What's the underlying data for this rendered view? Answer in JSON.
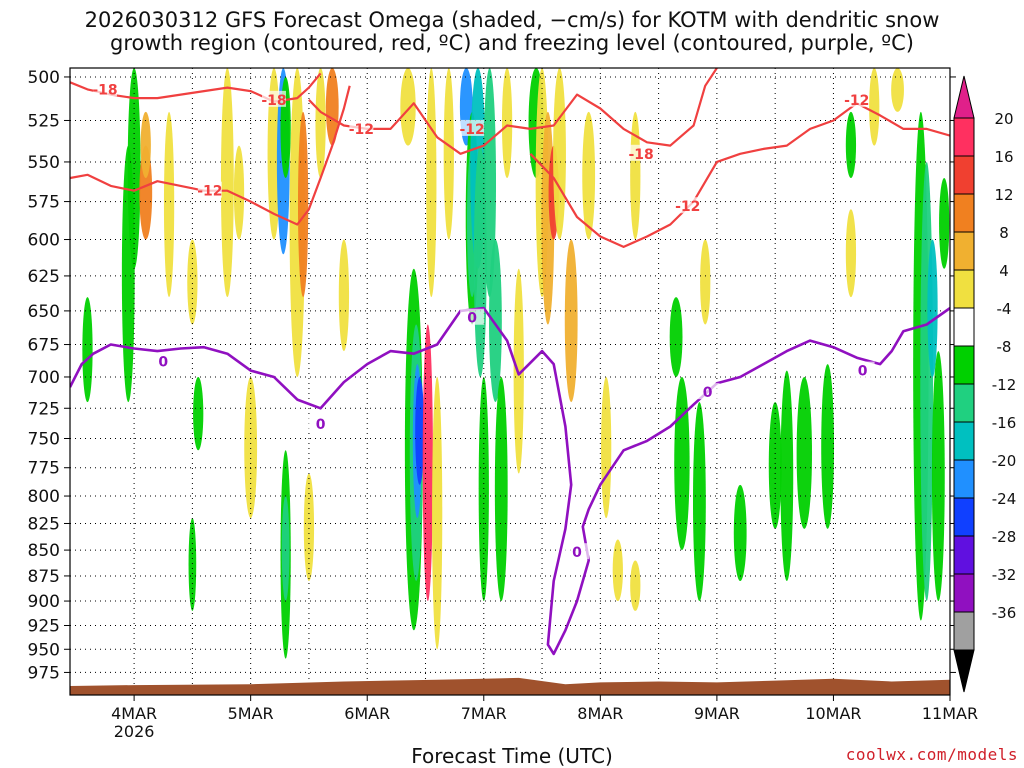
{
  "title_line1": "2026030312 GFS Forecast Omega (shaded, −cm/s) for KOTM with dendritic snow",
  "title_line2": "growth region (contoured, red, ºC) and freezing level (contoured, purple, ºC)",
  "credit": "coolwx.com/models",
  "chart_data": {
    "type": "heatmap",
    "title": "2026030312 GFS Forecast Omega (shaded, −cm/s) for KOTM with dendritic snow growth region (contoured, red, ºC) and freezing level (contoured, purple, ºC)",
    "xlabel": "Forecast Time (UTC)",
    "ylabel": "",
    "x_ticks": [
      "4MAR",
      "5MAR",
      "6MAR",
      "7MAR",
      "8MAR",
      "9MAR",
      "10MAR",
      "11MAR"
    ],
    "x_tick_sub": "2026",
    "x_range_days": [
      3.45,
      11.0
    ],
    "y_ticks": [
      500,
      525,
      550,
      575,
      600,
      625,
      650,
      675,
      700,
      725,
      750,
      775,
      800,
      825,
      850,
      875,
      900,
      925,
      950,
      975
    ],
    "y_range_hpa": [
      495,
      1000
    ],
    "y_scale": "log",
    "grid": true,
    "colorbar": {
      "labels": [
        "20",
        "16",
        "12",
        "8",
        "4",
        "-4",
        "-8",
        "-12",
        "-16",
        "-20",
        "-24",
        "-28",
        "-32",
        "-36"
      ],
      "colors": [
        "#ff3060",
        "#f04030",
        "#f08020",
        "#f0b030",
        "#f0e040",
        "#ffffff",
        "#00d000",
        "#20d080",
        "#00c0c0",
        "#2090ff",
        "#1040ff",
        "#6010e0",
        "#9010c0",
        "#a0a0a0"
      ],
      "end_top": "#e0208a",
      "end_bottom": "#000000"
    },
    "contours": [
      {
        "name": "-18",
        "color": "#f04040",
        "points": [
          [
            3.45,
            503
          ],
          [
            3.6,
            507
          ],
          [
            3.8,
            510
          ],
          [
            4.0,
            512
          ],
          [
            4.2,
            512
          ],
          [
            4.4,
            510
          ],
          [
            4.6,
            508
          ],
          [
            4.8,
            506
          ],
          [
            5.0,
            508
          ],
          [
            5.2,
            514
          ],
          [
            5.4,
            512
          ],
          [
            5.5,
            506
          ],
          [
            5.6,
            498
          ]
        ]
      },
      {
        "name": "-12 upper",
        "color": "#f04040",
        "points": [
          [
            5.5,
            513
          ],
          [
            5.6,
            520
          ],
          [
            5.8,
            528
          ],
          [
            6.0,
            530
          ],
          [
            6.2,
            530
          ],
          [
            6.4,
            515
          ],
          [
            6.6,
            535
          ],
          [
            6.8,
            545
          ],
          [
            7.0,
            540
          ],
          [
            7.2,
            528
          ],
          [
            7.4,
            530
          ],
          [
            7.6,
            528
          ],
          [
            7.8,
            510
          ],
          [
            8.0,
            518
          ],
          [
            8.2,
            530
          ],
          [
            8.4,
            538
          ],
          [
            8.6,
            540
          ],
          [
            8.8,
            528
          ],
          [
            8.9,
            505
          ],
          [
            9.0,
            495
          ]
        ]
      },
      {
        "name": "-12 lower",
        "color": "#f04040",
        "points": [
          [
            3.45,
            560
          ],
          [
            3.6,
            558
          ],
          [
            3.8,
            565
          ],
          [
            4.0,
            568
          ],
          [
            4.2,
            562
          ],
          [
            4.4,
            565
          ],
          [
            4.6,
            568
          ],
          [
            4.8,
            568
          ],
          [
            5.0,
            575
          ],
          [
            5.2,
            583
          ],
          [
            5.4,
            590
          ],
          [
            5.5,
            580
          ],
          [
            5.6,
            560
          ],
          [
            5.7,
            540
          ],
          [
            5.8,
            518
          ],
          [
            5.85,
            505
          ]
        ]
      },
      {
        "name": "-12 right",
        "color": "#f04040",
        "points": [
          [
            7.4,
            545
          ],
          [
            7.6,
            560
          ],
          [
            7.8,
            585
          ],
          [
            8.0,
            598
          ],
          [
            8.2,
            605
          ],
          [
            8.4,
            598
          ],
          [
            8.6,
            590
          ],
          [
            8.8,
            575
          ],
          [
            9.0,
            550
          ],
          [
            9.2,
            545
          ],
          [
            9.4,
            542
          ],
          [
            9.6,
            540
          ],
          [
            9.8,
            530
          ],
          [
            10.0,
            525
          ],
          [
            10.2,
            515
          ],
          [
            10.4,
            522
          ],
          [
            10.6,
            530
          ],
          [
            10.8,
            530
          ],
          [
            11.0,
            534
          ]
        ]
      },
      {
        "name": "0",
        "color": "#9010c0",
        "points": [
          [
            3.45,
            708
          ],
          [
            3.55,
            690
          ],
          [
            3.65,
            682
          ],
          [
            3.8,
            675
          ],
          [
            4.0,
            678
          ],
          [
            4.2,
            680
          ],
          [
            4.4,
            678
          ],
          [
            4.6,
            677
          ],
          [
            4.8,
            682
          ],
          [
            5.0,
            695
          ],
          [
            5.2,
            700
          ],
          [
            5.4,
            718
          ],
          [
            5.6,
            725
          ],
          [
            5.8,
            704
          ],
          [
            6.0,
            690
          ],
          [
            6.2,
            680
          ],
          [
            6.4,
            682
          ],
          [
            6.6,
            675
          ],
          [
            6.8,
            650
          ],
          [
            7.0,
            648
          ],
          [
            7.2,
            672
          ],
          [
            7.3,
            698
          ],
          [
            7.5,
            680
          ],
          [
            7.6,
            690
          ],
          [
            7.7,
            740
          ],
          [
            7.75,
            790
          ],
          [
            7.7,
            830
          ],
          [
            7.6,
            880
          ],
          [
            7.55,
            945
          ],
          [
            7.6,
            955
          ],
          [
            7.7,
            930
          ],
          [
            7.8,
            900
          ],
          [
            7.9,
            860
          ],
          [
            7.85,
            828
          ],
          [
            7.9,
            812
          ],
          [
            8.0,
            790
          ],
          [
            8.2,
            760
          ],
          [
            8.4,
            752
          ],
          [
            8.6,
            740
          ],
          [
            8.8,
            722
          ],
          [
            9.0,
            705
          ],
          [
            9.2,
            700
          ],
          [
            9.4,
            690
          ],
          [
            9.6,
            680
          ],
          [
            9.8,
            672
          ],
          [
            10.0,
            677
          ],
          [
            10.2,
            685
          ],
          [
            10.4,
            690
          ],
          [
            10.5,
            680
          ],
          [
            10.6,
            665
          ],
          [
            10.8,
            660
          ],
          [
            11.0,
            648
          ]
        ]
      }
    ],
    "contour_labels": [
      "-18",
      "-18",
      "-12",
      "-12",
      "-12",
      "-18",
      "-12",
      "-12",
      "0",
      "0",
      "0",
      "0",
      "0",
      "0"
    ]
  }
}
